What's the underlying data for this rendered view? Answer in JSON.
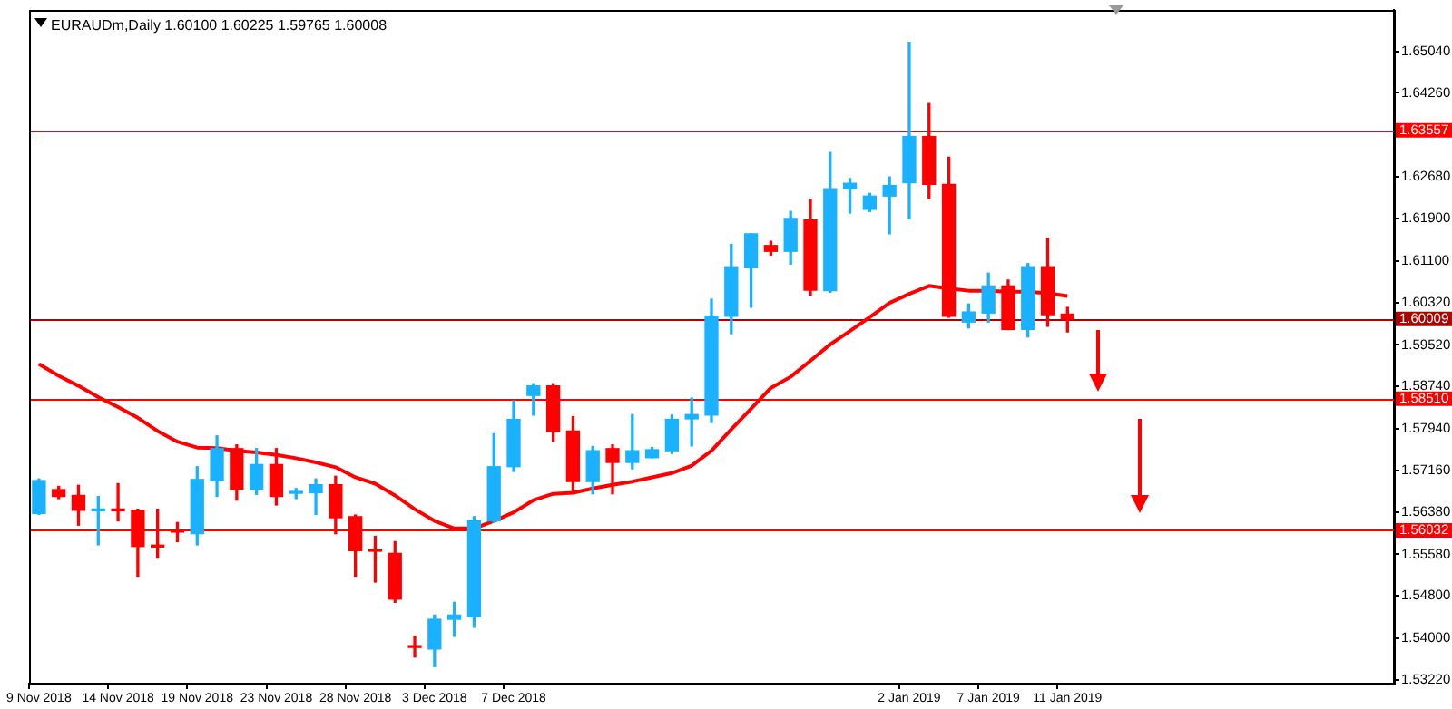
{
  "chart_data": {
    "type": "candlestick",
    "title": "EURAUDm,Daily 1.60100 1.60225 1.59765 1.60008",
    "categories": [
      "9 Nov 2018",
      null,
      null,
      null,
      "14 Nov 2018",
      null,
      null,
      null,
      "19 Nov 2018",
      null,
      null,
      null,
      "23 Nov 2018",
      null,
      null,
      null,
      "28 Nov 2018",
      null,
      null,
      null,
      "3 Dec 2018",
      null,
      null,
      null,
      "7 Dec 2018",
      null,
      null,
      null,
      null,
      null,
      null,
      null,
      null,
      null,
      null,
      null,
      null,
      null,
      null,
      null,
      null,
      null,
      null,
      null,
      "2 Jan 2019",
      null,
      null,
      null,
      "7 Jan 2019",
      null,
      null,
      null,
      "11 Jan 2019"
    ],
    "ohlc": [
      [
        1.5635,
        1.57,
        1.5633,
        1.5697
      ],
      [
        1.568,
        1.5686,
        1.5663,
        1.5667
      ],
      [
        1.5669,
        1.5688,
        1.5613,
        1.5641
      ],
      [
        1.564,
        1.5667,
        1.5576,
        1.5642
      ],
      [
        1.5642,
        1.5691,
        1.5621,
        1.564
      ],
      [
        1.5641,
        1.5643,
        1.5517,
        1.5573
      ],
      [
        1.5574,
        1.5643,
        1.5551,
        1.5572
      ],
      [
        1.5602,
        1.5618,
        1.5582,
        1.56
      ],
      [
        1.5597,
        1.5723,
        1.5576,
        1.5699
      ],
      [
        1.5697,
        1.5781,
        1.5667,
        1.5757
      ],
      [
        1.5757,
        1.5764,
        1.566,
        1.568
      ],
      [
        1.568,
        1.5757,
        1.5671,
        1.5727
      ],
      [
        1.5727,
        1.5757,
        1.5651,
        1.5667
      ],
      [
        1.5673,
        1.5682,
        1.5663,
        1.5675
      ],
      [
        1.5674,
        1.57,
        1.5633,
        1.5689
      ],
      [
        1.5689,
        1.5705,
        1.5597,
        1.5627
      ],
      [
        1.5629,
        1.5632,
        1.5517,
        1.5565
      ],
      [
        1.5566,
        1.5592,
        1.5506,
        1.5564
      ],
      [
        1.556,
        1.5582,
        1.5468,
        1.5474
      ],
      [
        1.5385,
        1.5404,
        1.5365,
        1.5383
      ],
      [
        1.538,
        1.5444,
        1.5347,
        1.5436
      ],
      [
        1.5436,
        1.5468,
        1.5404,
        1.5444
      ],
      [
        1.5441,
        1.5629,
        1.5421,
        1.5621
      ],
      [
        1.5621,
        1.5785,
        1.5618,
        1.5723
      ],
      [
        1.5723,
        1.5847,
        1.5714,
        1.5812
      ],
      [
        1.5857,
        1.5879,
        1.582,
        1.5875
      ],
      [
        1.5875,
        1.5879,
        1.577,
        1.5789
      ],
      [
        1.579,
        1.5817,
        1.5674,
        1.5695
      ],
      [
        1.5695,
        1.5761,
        1.5672,
        1.5753
      ],
      [
        1.5757,
        1.5764,
        1.5672,
        1.5731
      ],
      [
        1.5731,
        1.5821,
        1.5719,
        1.5753
      ],
      [
        1.574,
        1.5759,
        1.574,
        1.5755
      ],
      [
        1.5753,
        1.582,
        1.5748,
        1.5812
      ],
      [
        1.5813,
        1.5852,
        1.5762,
        1.5821
      ],
      [
        1.582,
        1.6038,
        1.5806,
        1.6006
      ],
      [
        1.6006,
        1.6141,
        1.5973,
        1.6099
      ],
      [
        1.6097,
        1.6161,
        1.6023,
        1.6161
      ],
      [
        1.6139,
        1.6147,
        1.6121,
        1.6128
      ],
      [
        1.6128,
        1.6203,
        1.6104,
        1.619
      ],
      [
        1.6187,
        1.6226,
        1.6046,
        1.6055
      ],
      [
        1.6054,
        1.6314,
        1.6051,
        1.6246
      ],
      [
        1.6246,
        1.6265,
        1.62,
        1.6256
      ],
      [
        1.6207,
        1.6237,
        1.6203,
        1.6232
      ],
      [
        1.6232,
        1.6268,
        1.6161,
        1.6252
      ],
      [
        1.6257,
        1.6521,
        1.6189,
        1.6344
      ],
      [
        1.6344,
        1.6406,
        1.6228,
        1.6254
      ],
      [
        1.6254,
        1.6305,
        1.6004,
        1.6006
      ],
      [
        1.5995,
        1.6029,
        1.5984,
        1.6014
      ],
      [
        1.6012,
        1.6087,
        1.5995,
        1.6063
      ],
      [
        1.6063,
        1.6074,
        1.5981,
        1.5981
      ],
      [
        1.5981,
        1.6105,
        1.5967,
        1.6099
      ],
      [
        1.6099,
        1.6153,
        1.5987,
        1.6009
      ],
      [
        1.601,
        1.60225,
        1.59765,
        1.60008
      ]
    ],
    "colors": [
      "#1ab2ff",
      "#ff0000",
      "#ff0000",
      "#1ab2ff",
      "#ff0000",
      "#ff0000",
      "#ff0000",
      "#ff0000",
      "#1ab2ff",
      "#1ab2ff",
      "#ff0000",
      "#1ab2ff",
      "#ff0000",
      "#1ab2ff",
      "#1ab2ff",
      "#ff0000",
      "#ff0000",
      "#ff0000",
      "#ff0000",
      "#ff0000",
      "#1ab2ff",
      "#1ab2ff",
      "#1ab2ff",
      "#1ab2ff",
      "#1ab2ff",
      "#1ab2ff",
      "#ff0000",
      "#ff0000",
      "#1ab2ff",
      "#ff0000",
      "#1ab2ff",
      "#1ab2ff",
      "#1ab2ff",
      "#1ab2ff",
      "#1ab2ff",
      "#1ab2ff",
      "#1ab2ff",
      "#ff0000",
      "#1ab2ff",
      "#ff0000",
      "#1ab2ff",
      "#1ab2ff",
      "#1ab2ff",
      "#1ab2ff",
      "#1ab2ff",
      "#ff0000",
      "#ff0000",
      "#1ab2ff",
      "#1ab2ff",
      "#ff0000",
      "#1ab2ff",
      "#ff0000",
      "#ff0000"
    ],
    "series": [
      {
        "type": "line",
        "color": "#ff0000",
        "values": [
          1.5916,
          1.5894,
          1.5875,
          1.5854,
          1.5835,
          1.5815,
          1.579,
          1.577,
          1.5759,
          1.5758,
          1.5753,
          1.575,
          1.5745,
          1.5739,
          1.5731,
          1.5722,
          1.5703,
          1.5691,
          1.5669,
          1.5643,
          1.5621,
          1.5607,
          1.5607,
          1.5621,
          1.5637,
          1.566,
          1.5672,
          1.5674,
          1.5682,
          1.5689,
          1.5695,
          1.5703,
          1.5711,
          1.5725,
          1.5753,
          1.5793,
          1.5832,
          1.5871,
          1.5892,
          1.5922,
          1.5953,
          1.5978,
          1.6004,
          1.6031,
          1.6048,
          1.6063,
          1.6058,
          1.6054,
          1.6054,
          1.6052,
          1.6052,
          1.6049,
          1.6044
        ]
      }
    ],
    "ylim": [
      1.5315,
      1.6582
    ],
    "yticks": [
      {
        "value": 1.5322,
        "label": "1.53220"
      },
      {
        "value": 1.54,
        "label": "1.54000"
      },
      {
        "value": 1.548,
        "label": "1.54800"
      },
      {
        "value": 1.5558,
        "label": "1.55580"
      },
      {
        "value": 1.5638,
        "label": "1.56380"
      },
      {
        "value": 1.5716,
        "label": "1.57160"
      },
      {
        "value": 1.5794,
        "label": "1.57940"
      },
      {
        "value": 1.5874,
        "label": "1.58740"
      },
      {
        "value": 1.5952,
        "label": "1.59520"
      },
      {
        "value": 1.6032,
        "label": "1.60320"
      },
      {
        "value": 1.611,
        "label": "1.61100"
      },
      {
        "value": 1.619,
        "label": "1.61900"
      },
      {
        "value": 1.6268,
        "label": "1.62680"
      },
      {
        "value": 1.6426,
        "label": "1.64260"
      },
      {
        "value": 1.6504,
        "label": "1.65040"
      }
    ],
    "ref_lines": [
      {
        "axis": "y",
        "value": 1.63557,
        "label": "1.63557",
        "color": "#ff0000"
      },
      {
        "axis": "y",
        "value": 1.60009,
        "label": "1.60009",
        "color": "#b00000"
      },
      {
        "axis": "y",
        "value": 1.5851,
        "label": "1.58510",
        "color": "#ff0000"
      },
      {
        "axis": "y",
        "value": 1.56032,
        "label": "1.56032",
        "color": "#ff0000"
      }
    ]
  }
}
